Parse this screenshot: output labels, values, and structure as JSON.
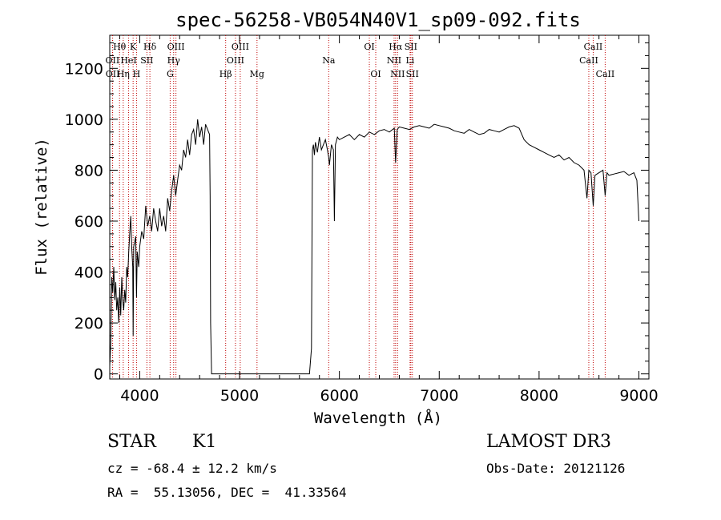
{
  "chart_data": {
    "type": "line",
    "title": "spec-56258-VB054N40V1_sp09-092.fits",
    "xlabel": "Wavelength (Å)",
    "ylabel": "Flux (relative)",
    "xlim": [
      3700,
      9100
    ],
    "ylim": [
      -20,
      1330
    ],
    "xticks": [
      4000,
      5000,
      6000,
      7000,
      8000,
      9000
    ],
    "yticks": [
      0,
      200,
      400,
      600,
      800,
      1000,
      1200
    ],
    "grid": false,
    "colors": {
      "spectrum": "#000000",
      "lines": "#c00000"
    },
    "spectral_lines": [
      {
        "label": "Hθ",
        "wavelength": 3798,
        "row": 0
      },
      {
        "label": "OII",
        "wavelength": 3727,
        "row": 1
      },
      {
        "label": "OII",
        "wavelength": 3729,
        "row": 2
      },
      {
        "label": "HeI",
        "wavelength": 3889,
        "row": 1
      },
      {
        "label": "Hη",
        "wavelength": 3835,
        "row": 2
      },
      {
        "label": "K",
        "wavelength": 3934,
        "row": 0
      },
      {
        "label": "H",
        "wavelength": 3968,
        "row": 2
      },
      {
        "label": "Hδ",
        "wavelength": 4102,
        "row": 0
      },
      {
        "label": "SII",
        "wavelength": 4072,
        "row": 1
      },
      {
        "label": "OIII",
        "wavelength": 4363,
        "row": 0
      },
      {
        "label": "Hγ",
        "wavelength": 4340,
        "row": 1
      },
      {
        "label": "G",
        "wavelength": 4305,
        "row": 2
      },
      {
        "label": "OIII",
        "wavelength": 5007,
        "row": 0
      },
      {
        "label": "OIII",
        "wavelength": 4959,
        "row": 1
      },
      {
        "label": "Hβ",
        "wavelength": 4861,
        "row": 2
      },
      {
        "label": "Mg",
        "wavelength": 5175,
        "row": 2
      },
      {
        "label": "Na",
        "wavelength": 5893,
        "row": 1
      },
      {
        "label": "OI",
        "wavelength": 6300,
        "row": 0
      },
      {
        "label": "OI",
        "wavelength": 6364,
        "row": 2
      },
      {
        "label": "Hα",
        "wavelength": 6563,
        "row": 0
      },
      {
        "label": "SII",
        "wavelength": 6716,
        "row": 0
      },
      {
        "label": "NII",
        "wavelength": 6548,
        "row": 1
      },
      {
        "label": "Li",
        "wavelength": 6708,
        "row": 1
      },
      {
        "label": "NII",
        "wavelength": 6583,
        "row": 2
      },
      {
        "label": "SII",
        "wavelength": 6731,
        "row": 2
      },
      {
        "label": "CaII",
        "wavelength": 8542,
        "row": 0
      },
      {
        "label": "CaII",
        "wavelength": 8498,
        "row": 1
      },
      {
        "label": "CaII",
        "wavelength": 8662,
        "row": 2
      }
    ],
    "spectrum": {
      "x": [
        3700,
        3710,
        3720,
        3730,
        3740,
        3750,
        3760,
        3770,
        3780,
        3790,
        3800,
        3810,
        3820,
        3830,
        3840,
        3850,
        3860,
        3870,
        3880,
        3890,
        3900,
        3910,
        3920,
        3930,
        3934,
        3940,
        3950,
        3960,
        3968,
        3975,
        3990,
        4000,
        4020,
        4040,
        4060,
        4080,
        4100,
        4120,
        4140,
        4160,
        4180,
        4200,
        4220,
        4240,
        4260,
        4280,
        4300,
        4320,
        4340,
        4360,
        4380,
        4400,
        4420,
        4440,
        4460,
        4480,
        4500,
        4520,
        4540,
        4560,
        4580,
        4600,
        4620,
        4640,
        4660,
        4680,
        4700,
        4705,
        4710,
        4720,
        4800,
        5000,
        5200,
        5400,
        5600,
        5700,
        5720,
        5730,
        5740,
        5750,
        5760,
        5780,
        5800,
        5820,
        5840,
        5860,
        5880,
        5893,
        5900,
        5920,
        5940,
        5950,
        5960,
        5980,
        6000,
        6050,
        6100,
        6150,
        6200,
        6250,
        6300,
        6350,
        6400,
        6450,
        6500,
        6550,
        6563,
        6580,
        6600,
        6650,
        6700,
        6750,
        6800,
        6850,
        6900,
        6950,
        7000,
        7050,
        7100,
        7150,
        7200,
        7250,
        7300,
        7350,
        7400,
        7450,
        7500,
        7550,
        7600,
        7650,
        7700,
        7750,
        7800,
        7850,
        7900,
        7950,
        8000,
        8050,
        8100,
        8150,
        8200,
        8250,
        8300,
        8350,
        8400,
        8450,
        8480,
        8498,
        8520,
        8542,
        8560,
        8600,
        8640,
        8662,
        8680,
        8700,
        8750,
        8800,
        8850,
        8900,
        8950,
        8980,
        9000
      ],
      "y": [
        30,
        120,
        380,
        320,
        420,
        290,
        360,
        250,
        300,
        200,
        340,
        230,
        380,
        290,
        250,
        330,
        280,
        420,
        380,
        480,
        550,
        620,
        500,
        420,
        150,
        500,
        520,
        540,
        300,
        480,
        420,
        500,
        560,
        530,
        660,
        580,
        620,
        560,
        650,
        600,
        560,
        650,
        580,
        620,
        560,
        690,
        640,
        720,
        780,
        700,
        760,
        820,
        800,
        880,
        850,
        920,
        860,
        940,
        960,
        900,
        1000,
        930,
        970,
        900,
        980,
        960,
        940,
        700,
        200,
        0,
        0,
        0,
        0,
        0,
        0,
        0,
        100,
        880,
        900,
        860,
        910,
        870,
        930,
        880,
        900,
        920,
        880,
        850,
        820,
        900,
        880,
        600,
        900,
        930,
        920,
        930,
        940,
        920,
        940,
        930,
        950,
        940,
        955,
        960,
        950,
        965,
        830,
        960,
        970,
        965,
        960,
        970,
        975,
        970,
        965,
        980,
        975,
        970,
        965,
        955,
        950,
        945,
        960,
        950,
        940,
        945,
        960,
        955,
        950,
        960,
        970,
        975,
        965,
        920,
        900,
        890,
        880,
        870,
        860,
        850,
        860,
        840,
        850,
        830,
        820,
        800,
        690,
        800,
        790,
        660,
        780,
        790,
        800,
        700,
        790,
        780,
        785,
        790,
        795,
        780,
        790,
        760,
        600
      ]
    }
  },
  "footer": {
    "class": "STAR",
    "subclass": "K1",
    "cz": "cz = -68.4 ± 12.2 km/s",
    "coords": "RA =  55.13056, DEC =  41.33564",
    "survey": "LAMOST DR3",
    "obs_date": "Obs-Date: 20121126"
  }
}
